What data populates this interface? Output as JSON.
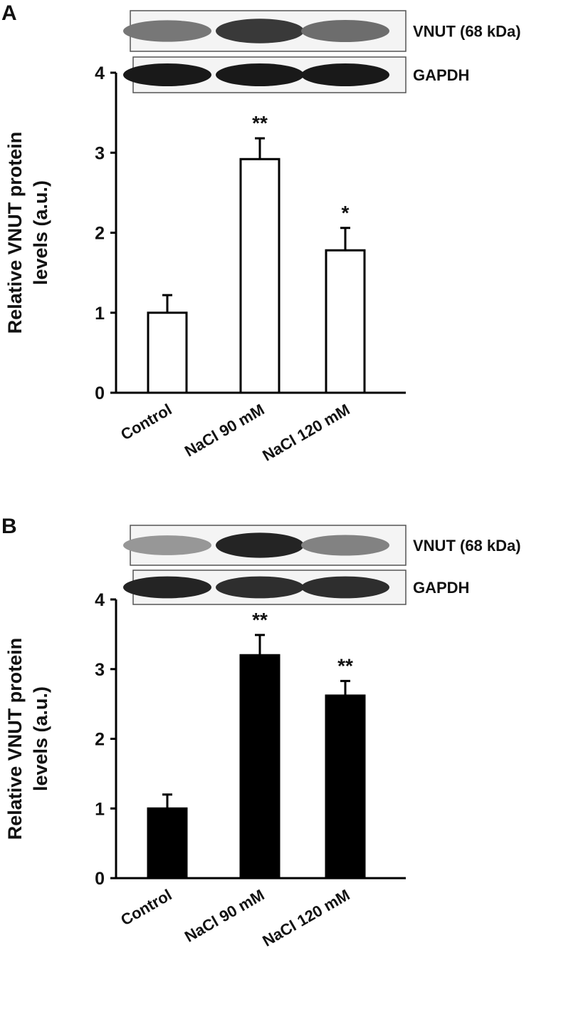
{
  "chart_data": [
    {
      "type": "bar",
      "panel": "A",
      "blot_labels": [
        "VNUT (68 kDa)",
        "GAPDH"
      ],
      "ylabel": [
        "Relative VNUT protein",
        "levels (a.u.)"
      ],
      "categories": [
        "Control",
        "NaCl 90 mM",
        "NaCl 120 mM"
      ],
      "values": [
        1.0,
        2.92,
        1.78
      ],
      "errors": [
        0.22,
        0.26,
        0.28
      ],
      "annotations": [
        null,
        "**",
        "*"
      ],
      "color": "#ffffff",
      "ylim": [
        0,
        4
      ],
      "yticks": [
        0,
        1,
        2,
        3,
        4
      ]
    },
    {
      "type": "bar",
      "panel": "B",
      "blot_labels": [
        "VNUT (68 kDa)",
        "GAPDH"
      ],
      "ylabel": [
        "Relative VNUT protein",
        "levels (a.u.)"
      ],
      "categories": [
        "Control",
        "NaCl 90 mM",
        "NaCl 120 mM"
      ],
      "values": [
        1.0,
        3.2,
        2.62
      ],
      "errors": [
        0.2,
        0.29,
        0.21
      ],
      "annotations": [
        null,
        "**",
        "**"
      ],
      "color": "#000000",
      "ylim": [
        0,
        4
      ],
      "yticks": [
        0,
        1,
        2,
        3,
        4
      ]
    }
  ]
}
